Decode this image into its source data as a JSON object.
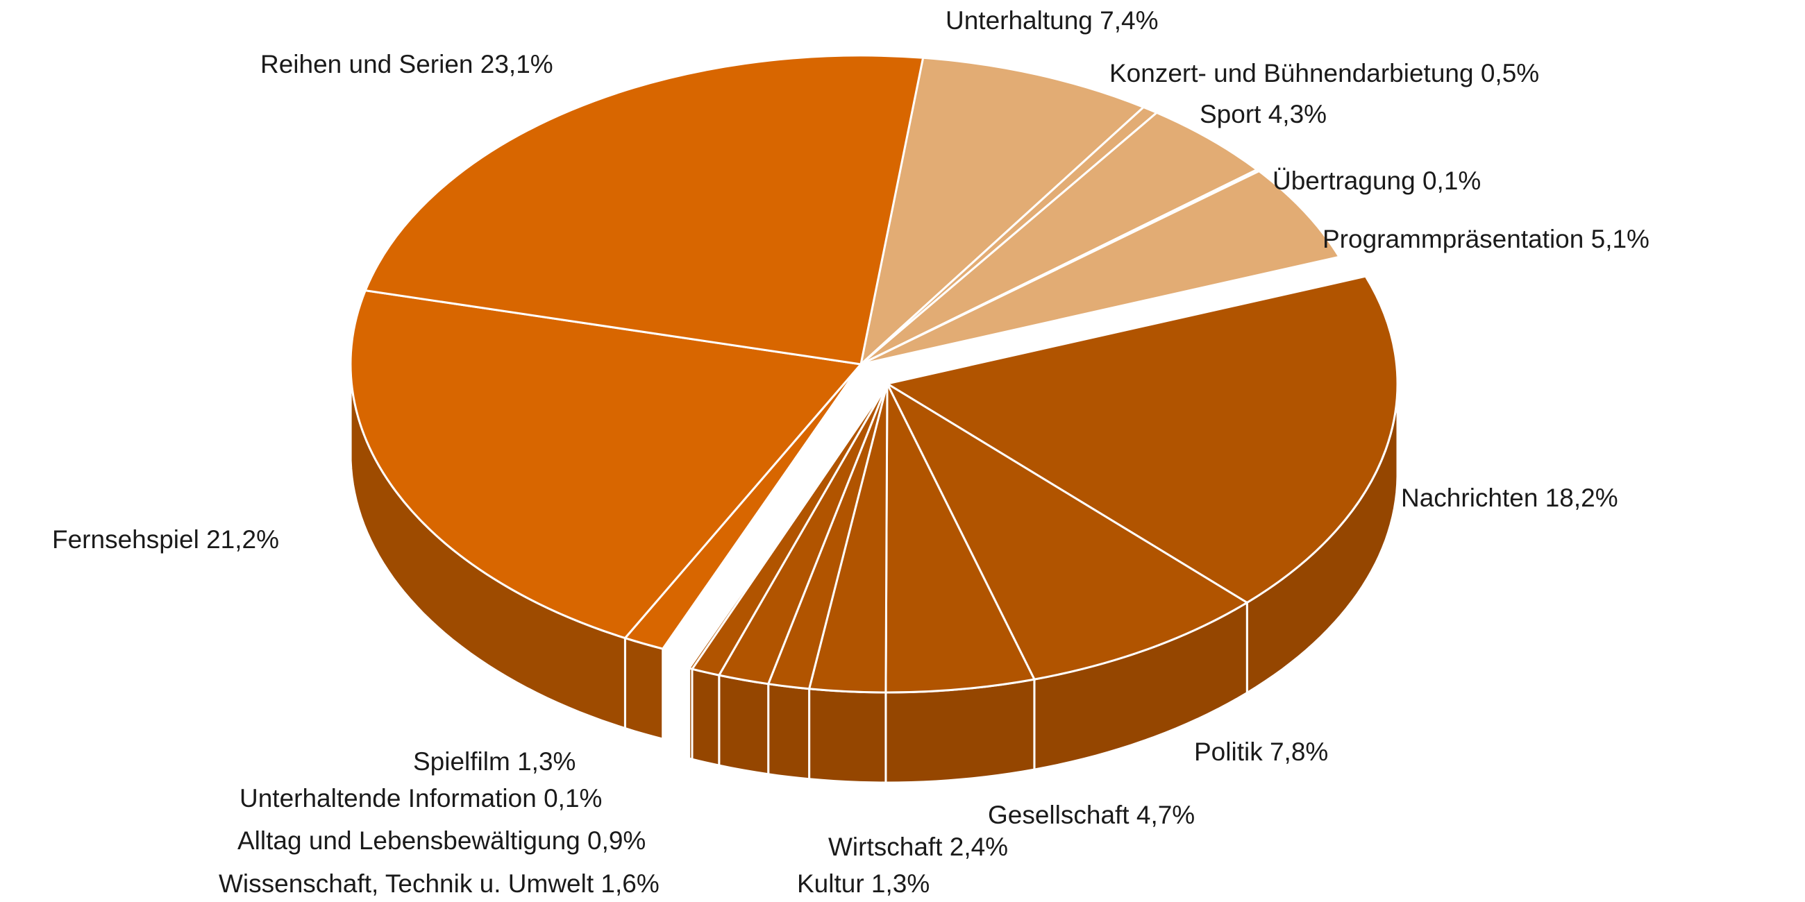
{
  "chart_data": {
    "type": "pie",
    "style": "3d-exploded",
    "unit": "%",
    "slices": [
      {
        "key": "unterhaltung",
        "label": "Unterhaltung 7,4%",
        "value": 7.4,
        "color": "#E2AC74"
      },
      {
        "key": "konzert",
        "label": "Konzert- und Bühnendarbietung 0,5%",
        "value": 0.5,
        "color": "#E2AC74"
      },
      {
        "key": "sport",
        "label": "Sport 4,3%",
        "value": 4.3,
        "color": "#E2AC74"
      },
      {
        "key": "uebertragung",
        "label": "Übertragung 0,1%",
        "value": 0.1,
        "color": "#E2AC74"
      },
      {
        "key": "programmpraesentation",
        "label": "Programmpräsentation 5,1%",
        "value": 5.1,
        "color": "#E2AC74"
      },
      {
        "key": "nachrichten",
        "label": "Nachrichten 18,2%",
        "value": 18.2,
        "color": "#B15400"
      },
      {
        "key": "politik",
        "label": "Politik 7,8%",
        "value": 7.8,
        "color": "#B15400"
      },
      {
        "key": "gesellschaft",
        "label": "Gesellschaft 4,7%",
        "value": 4.7,
        "color": "#B15400"
      },
      {
        "key": "wirtschaft",
        "label": "Wirtschaft 2,4%",
        "value": 2.4,
        "color": "#B15400"
      },
      {
        "key": "kultur",
        "label": "Kultur 1,3%",
        "value": 1.3,
        "color": "#B15400"
      },
      {
        "key": "wissenschaft",
        "label": "Wissenschaft, Technik u. Umwelt 1,6%",
        "value": 1.6,
        "color": "#B15400"
      },
      {
        "key": "alltag",
        "label": "Alltag und Lebensbewältigung 0,9%",
        "value": 0.9,
        "color": "#B15400"
      },
      {
        "key": "unterhaltende_information",
        "label": "Unterhaltende Information 0,1%",
        "value": 0.1,
        "color": "#B15400"
      },
      {
        "key": "spielfilm",
        "label": "Spielfilm 1,3%",
        "value": 1.3,
        "color": "#D86600"
      },
      {
        "key": "fernsehspiel",
        "label": "Fernsehspiel 21,2%",
        "value": 21.2,
        "color": "#D86600"
      },
      {
        "key": "reihen_serien",
        "label": "Reihen und Serien 23,1%",
        "value": 23.1,
        "color": "#D86600"
      }
    ],
    "groups": [
      {
        "key": "unterhaltung_sport",
        "color": "#E2AC74"
      },
      {
        "key": "information",
        "color": "#B15400"
      },
      {
        "key": "fiktion",
        "color": "#D86600"
      }
    ]
  }
}
